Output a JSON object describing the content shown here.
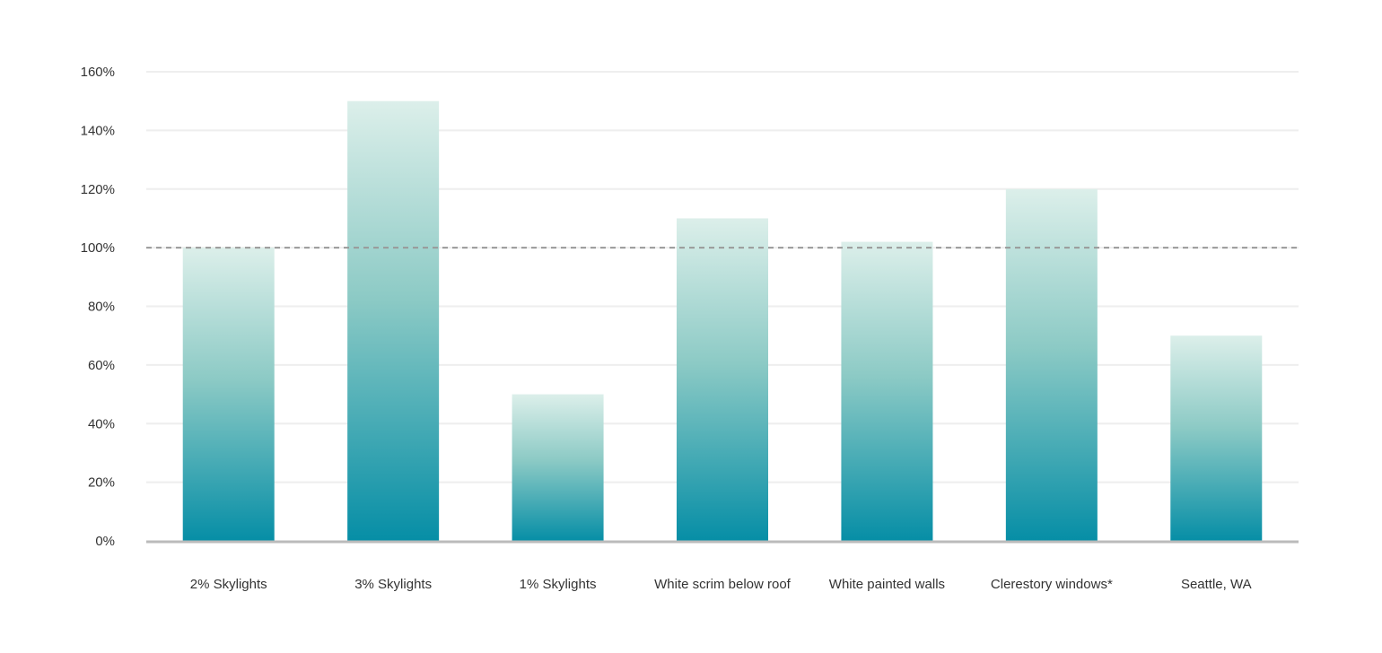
{
  "chart_data": {
    "type": "bar",
    "title": "",
    "xlabel": "",
    "ylabel": "",
    "categories": [
      "2% Skylights",
      "3% Skylights",
      "1% Skylights",
      "White scrim below roof",
      "White painted walls",
      "Clerestory windows*",
      "Seattle, WA"
    ],
    "values": [
      100,
      150,
      50,
      110,
      102,
      120,
      70
    ],
    "ylim": [
      0,
      160
    ],
    "yticks": [
      0,
      20,
      40,
      60,
      80,
      100,
      120,
      140,
      160
    ],
    "ytick_labels": [
      "0%",
      "20%",
      "40%",
      "60%",
      "80%",
      "100%",
      "120%",
      "140%",
      "160%"
    ],
    "reference_line": 100,
    "grid": true,
    "colors": {
      "bar_bottom": "#068ea6",
      "bar_mid": "#8ccac5",
      "bar_top": "#dcefea",
      "reference": "#999999",
      "grid": "#eeeeee",
      "axis": "#bbbbbb"
    }
  }
}
